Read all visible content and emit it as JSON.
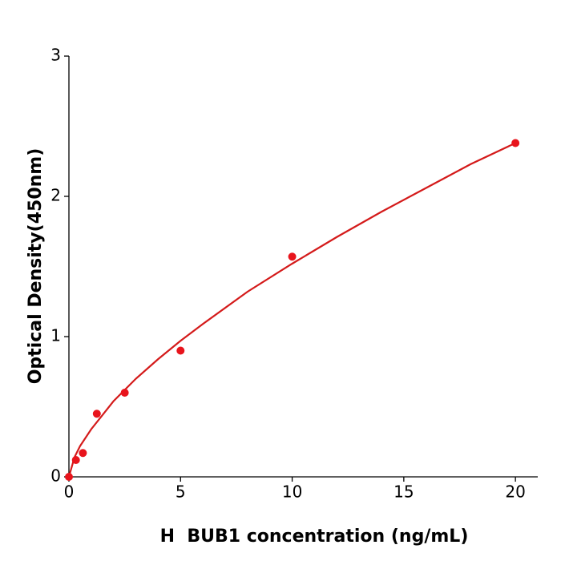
{
  "chart_data": {
    "type": "scatter",
    "xlabel": "H  BUB1 concentration (ng/mL)",
    "ylabel": "Optical Density(450nm)",
    "xlim": [
      0,
      21
    ],
    "ylim": [
      0,
      3
    ],
    "xticks": [
      0,
      5,
      10,
      15,
      20
    ],
    "yticks": [
      0,
      1,
      2,
      3
    ],
    "series": [
      {
        "type": "scatter",
        "color": "#e8141c",
        "x": [
          0,
          0.3125,
          0.625,
          1.25,
          2.5,
          5,
          10,
          20
        ],
        "values": [
          0,
          0.12,
          0.17,
          0.45,
          0.6,
          0.9,
          1.57,
          2.38
        ]
      },
      {
        "type": "line",
        "color": "#d41a1a",
        "x": [
          0,
          0.25,
          0.5,
          1,
          2,
          3,
          4,
          5,
          6,
          8,
          10,
          12,
          14,
          16,
          18,
          20
        ],
        "values": [
          0,
          0.14,
          0.22,
          0.34,
          0.54,
          0.7,
          0.84,
          0.97,
          1.09,
          1.32,
          1.52,
          1.71,
          1.89,
          2.06,
          2.23,
          2.38
        ]
      }
    ]
  }
}
